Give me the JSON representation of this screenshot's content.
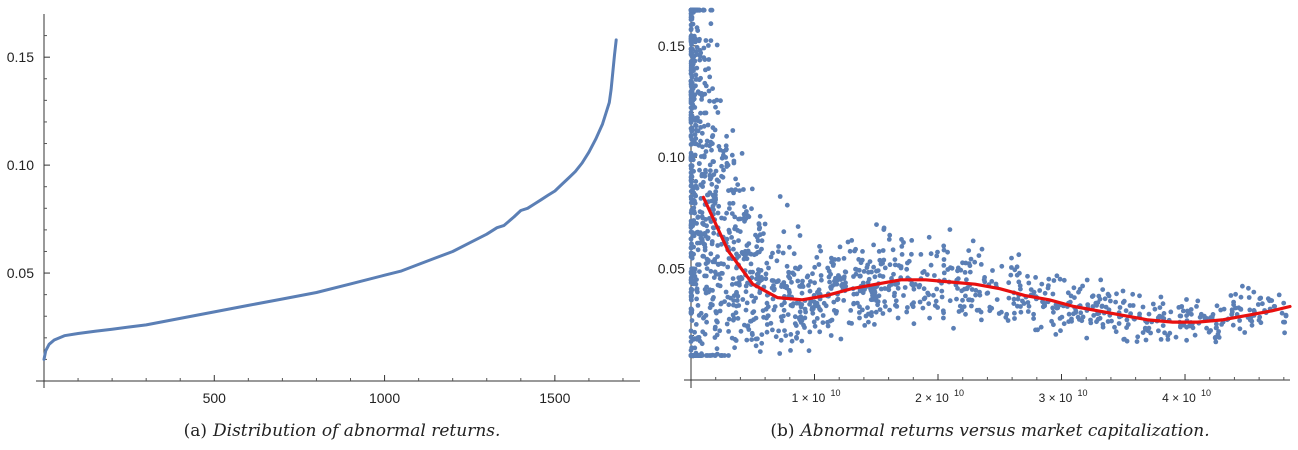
{
  "chart_data": [
    {
      "type": "line",
      "caption_label": "(a)",
      "caption_text": "Distribution of abnormal returns.",
      "xlabel": "",
      "ylabel": "",
      "xlim": [
        0,
        1750
      ],
      "ylim": [
        0,
        0.17
      ],
      "x_ticks": [
        500,
        1000,
        1500
      ],
      "x_tick_labels": [
        "500",
        "1000",
        "1500"
      ],
      "y_ticks": [
        0.05,
        0.1,
        0.15
      ],
      "y_tick_labels": [
        "0.05",
        "0.10",
        "0.15"
      ],
      "grid": false,
      "series": [
        {
          "color": "#5b7fb5",
          "x": [
            0,
            5,
            15,
            30,
            60,
            100,
            150,
            200,
            250,
            300,
            400,
            500,
            600,
            700,
            800,
            900,
            1000,
            1050,
            1100,
            1150,
            1200,
            1250,
            1300,
            1330,
            1350,
            1380,
            1400,
            1420,
            1440,
            1460,
            1480,
            1500,
            1520,
            1540,
            1560,
            1580,
            1600,
            1620,
            1640,
            1650,
            1660,
            1665,
            1670,
            1675,
            1680
          ],
          "y": [
            0.01,
            0.014,
            0.017,
            0.019,
            0.021,
            0.022,
            0.023,
            0.024,
            0.025,
            0.026,
            0.029,
            0.032,
            0.035,
            0.038,
            0.041,
            0.045,
            0.049,
            0.051,
            0.054,
            0.057,
            0.06,
            0.064,
            0.068,
            0.071,
            0.072,
            0.076,
            0.079,
            0.08,
            0.082,
            0.084,
            0.086,
            0.088,
            0.091,
            0.094,
            0.097,
            0.101,
            0.106,
            0.112,
            0.119,
            0.124,
            0.129,
            0.135,
            0.143,
            0.151,
            0.158
          ]
        }
      ]
    },
    {
      "type": "scatter",
      "caption_label": "(b)",
      "caption_text": "Abnormal returns versus market capitalization.",
      "xlabel": "",
      "ylabel": "",
      "xlim": [
        0,
        48500000000.0
      ],
      "ylim": [
        0,
        0.167
      ],
      "x_ticks": [
        10000000000.0,
        20000000000.0,
        30000000000.0,
        40000000000.0
      ],
      "x_tick_labels": [
        "1 × 10",
        "2 × 10",
        "3 × 10",
        "4 × 10"
      ],
      "x_tick_exponent": "10",
      "y_ticks": [
        0.05,
        0.1,
        0.15
      ],
      "y_tick_labels": [
        "0.05",
        "0.10",
        "0.15"
      ],
      "grid": false,
      "point_color": "#5b7fb5",
      "fit_color": "#e8100f",
      "fit_x": [
        1000000000.0,
        3000000000.0,
        5000000000.0,
        7000000000.0,
        9000000000.0,
        11000000000.0,
        13000000000.0,
        15000000000.0,
        17000000000.0,
        19000000000.0,
        21000000000.0,
        23000000000.0,
        25000000000.0,
        27000000000.0,
        29000000000.0,
        31000000000.0,
        33000000000.0,
        35000000000.0,
        37000000000.0,
        39000000000.0,
        41000000000.0,
        43000000000.0,
        45000000000.0,
        47000000000.0,
        48500000000.0
      ],
      "fit_y": [
        0.082,
        0.058,
        0.043,
        0.037,
        0.036,
        0.038,
        0.041,
        0.043,
        0.045,
        0.045,
        0.044,
        0.043,
        0.041,
        0.038,
        0.036,
        0.033,
        0.031,
        0.029,
        0.027,
        0.026,
        0.026,
        0.027,
        0.029,
        0.031,
        0.033
      ]
    }
  ]
}
